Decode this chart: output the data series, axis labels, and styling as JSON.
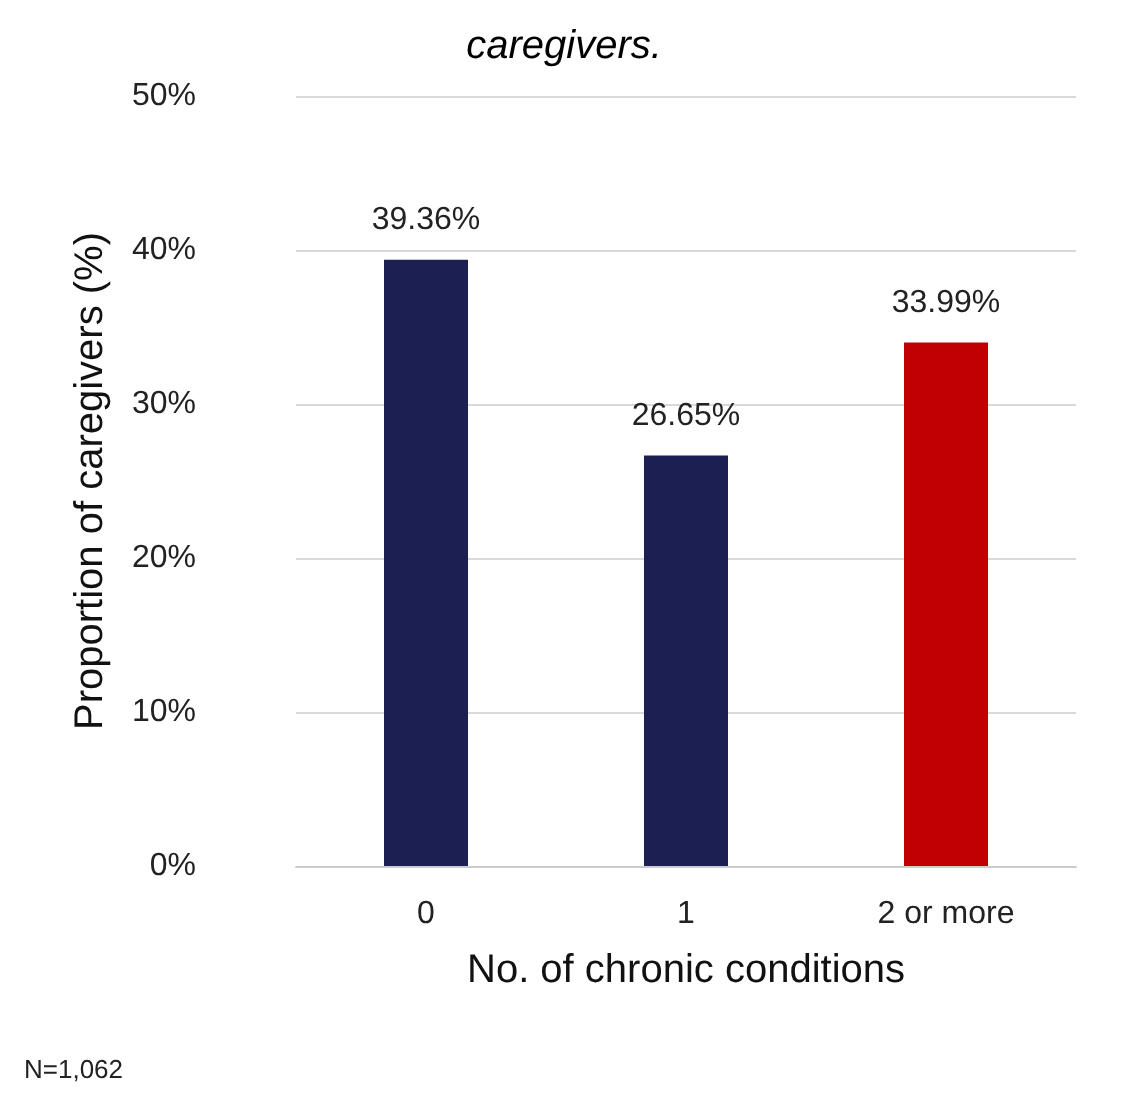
{
  "chart_data": {
    "type": "bar",
    "title": "caregivers.",
    "categories": [
      "0",
      "1",
      "2 or more"
    ],
    "values": [
      39.36,
      26.65,
      33.99
    ],
    "colors": [
      "#1b1f51",
      "#1b1f51",
      "#c00000"
    ],
    "xlabel": "No. of chronic conditions",
    "ylabel": "Proportion of caregivers (%)",
    "ylim": [
      0,
      50
    ],
    "yticks": [
      {
        "value": 0,
        "label": "0%"
      },
      {
        "value": 10,
        "label": "10%"
      },
      {
        "value": 20,
        "label": "20%"
      },
      {
        "value": 30,
        "label": "30%"
      },
      {
        "value": 40,
        "label": "40%"
      },
      {
        "value": 50,
        "label": "50%"
      }
    ],
    "grid": "y",
    "value_labels": [
      "39.36%",
      "26.65%",
      "33.99%"
    ],
    "annotations": [
      "N=1,062"
    ]
  }
}
